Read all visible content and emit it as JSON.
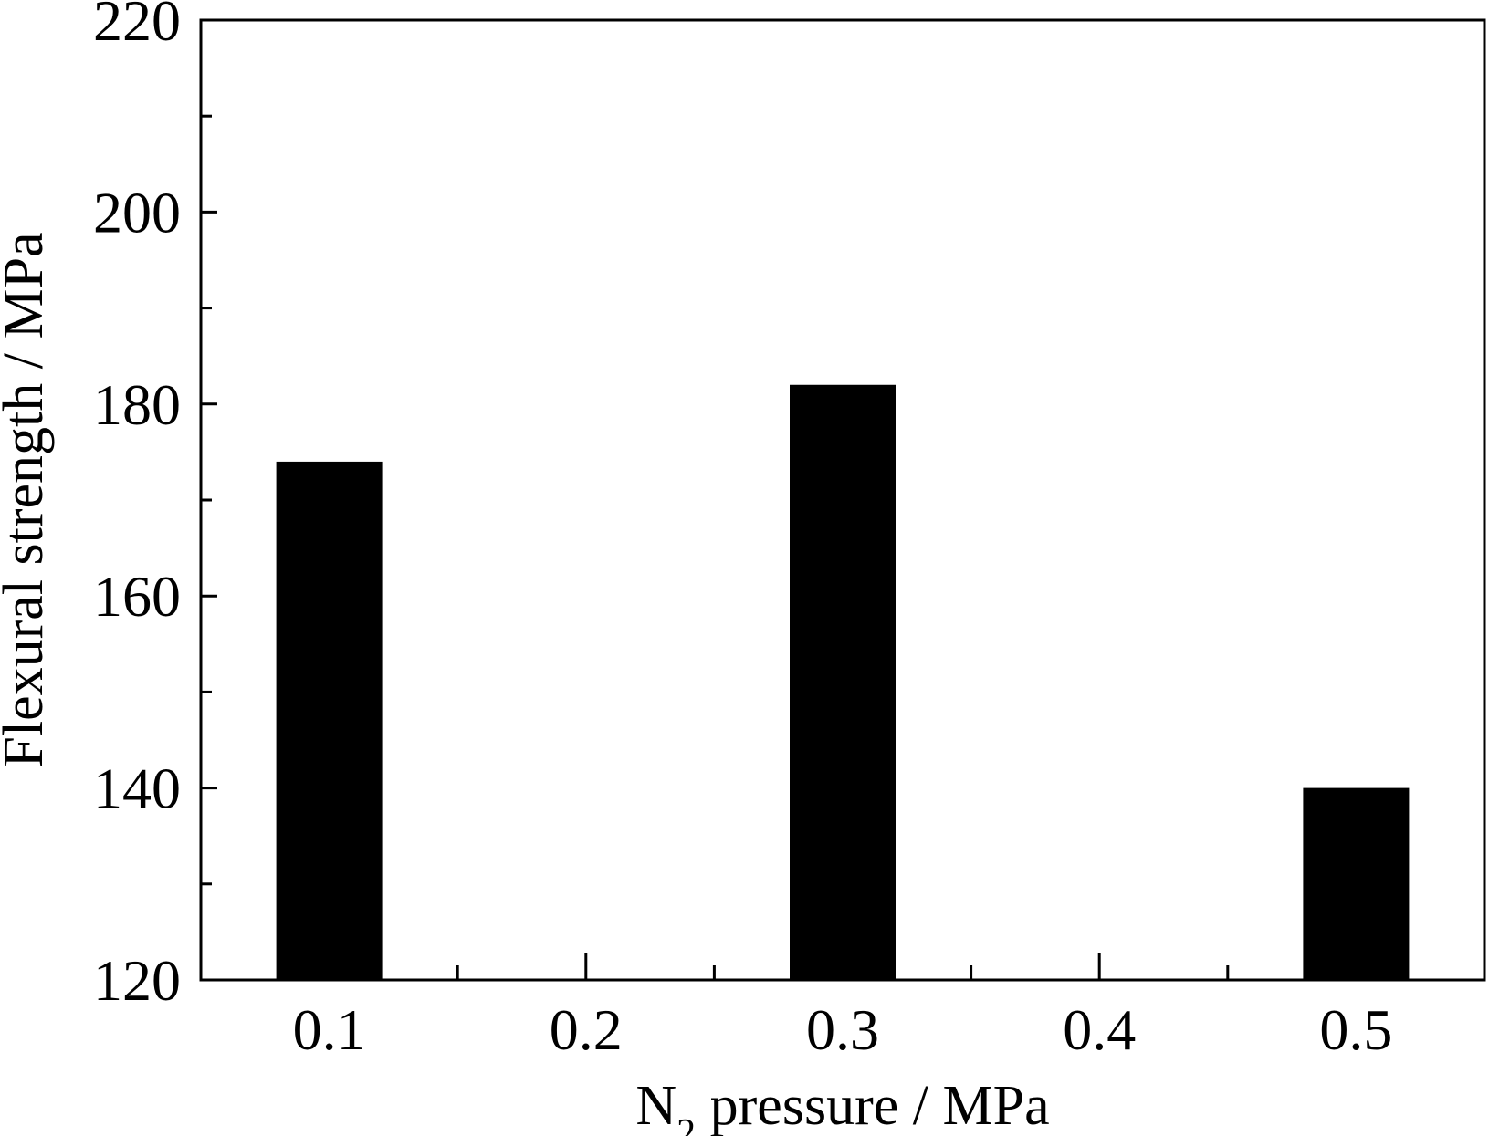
{
  "chart_data": {
    "type": "bar",
    "categories": [
      "0.1",
      "0.2",
      "0.3",
      "0.4",
      "0.5"
    ],
    "series": [
      {
        "values": [
          174,
          null,
          182,
          null,
          140
        ]
      }
    ],
    "xlabel": {
      "main": "N",
      "sub": "2",
      "rest": " pressure / MPa"
    },
    "ylabel": "Flexural strength / MPa",
    "ylim": [
      120,
      220
    ],
    "yticks": [
      120,
      140,
      160,
      180,
      200,
      220
    ],
    "bar_color": "#000000",
    "grid": false,
    "legend": "none"
  }
}
